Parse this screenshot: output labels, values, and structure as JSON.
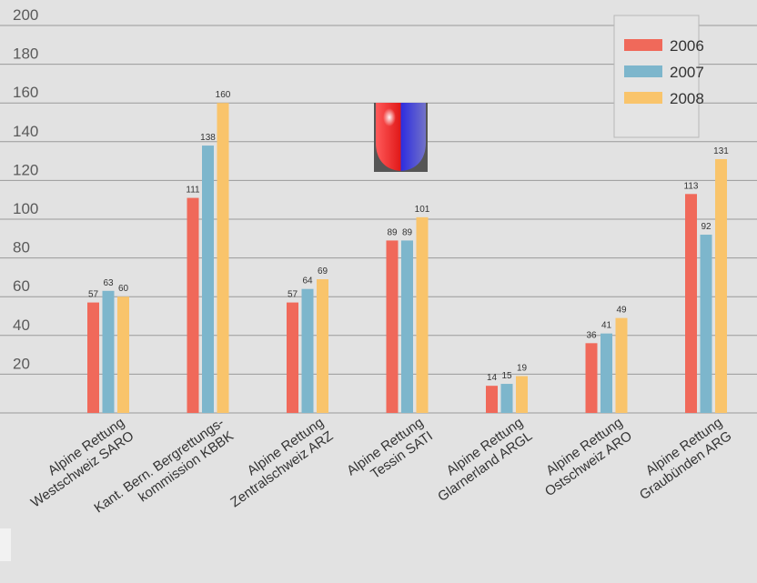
{
  "chart_data": {
    "type": "bar",
    "title": "",
    "xlabel": "",
    "ylabel": "",
    "ylim": [
      0,
      200
    ],
    "yticks": [
      20,
      40,
      60,
      80,
      100,
      120,
      140,
      160,
      180,
      200
    ],
    "grid": true,
    "legend_position": "top-right",
    "categories": [
      [
        "Alpine Rettung",
        "Westschweiz SARO"
      ],
      [
        "Kant. Bern. Bergrettungs-",
        "kommission KBBK"
      ],
      [
        "Alpine Rettung",
        "Zentralschweiz ARZ"
      ],
      [
        "Alpine Rettung",
        "Tessin SATI"
      ],
      [
        "Alpine Rettung",
        "Glarnerland ARGL"
      ],
      [
        "Alpine Rettung",
        "Ostschweiz ARO"
      ],
      [
        "Alpine Rettung",
        "Graubünden ARG"
      ]
    ],
    "series": [
      {
        "name": "2006",
        "color": "#f0695a",
        "values": [
          57,
          111,
          57,
          89,
          14,
          36,
          113
        ]
      },
      {
        "name": "2007",
        "color": "#7db6cc",
        "values": [
          63,
          138,
          64,
          89,
          15,
          41,
          92
        ]
      },
      {
        "name": "2008",
        "color": "#f9c46b",
        "values": [
          60,
          160,
          69,
          101,
          19,
          49,
          131
        ]
      }
    ],
    "icon": "red-blue-shield-logo-icon"
  }
}
